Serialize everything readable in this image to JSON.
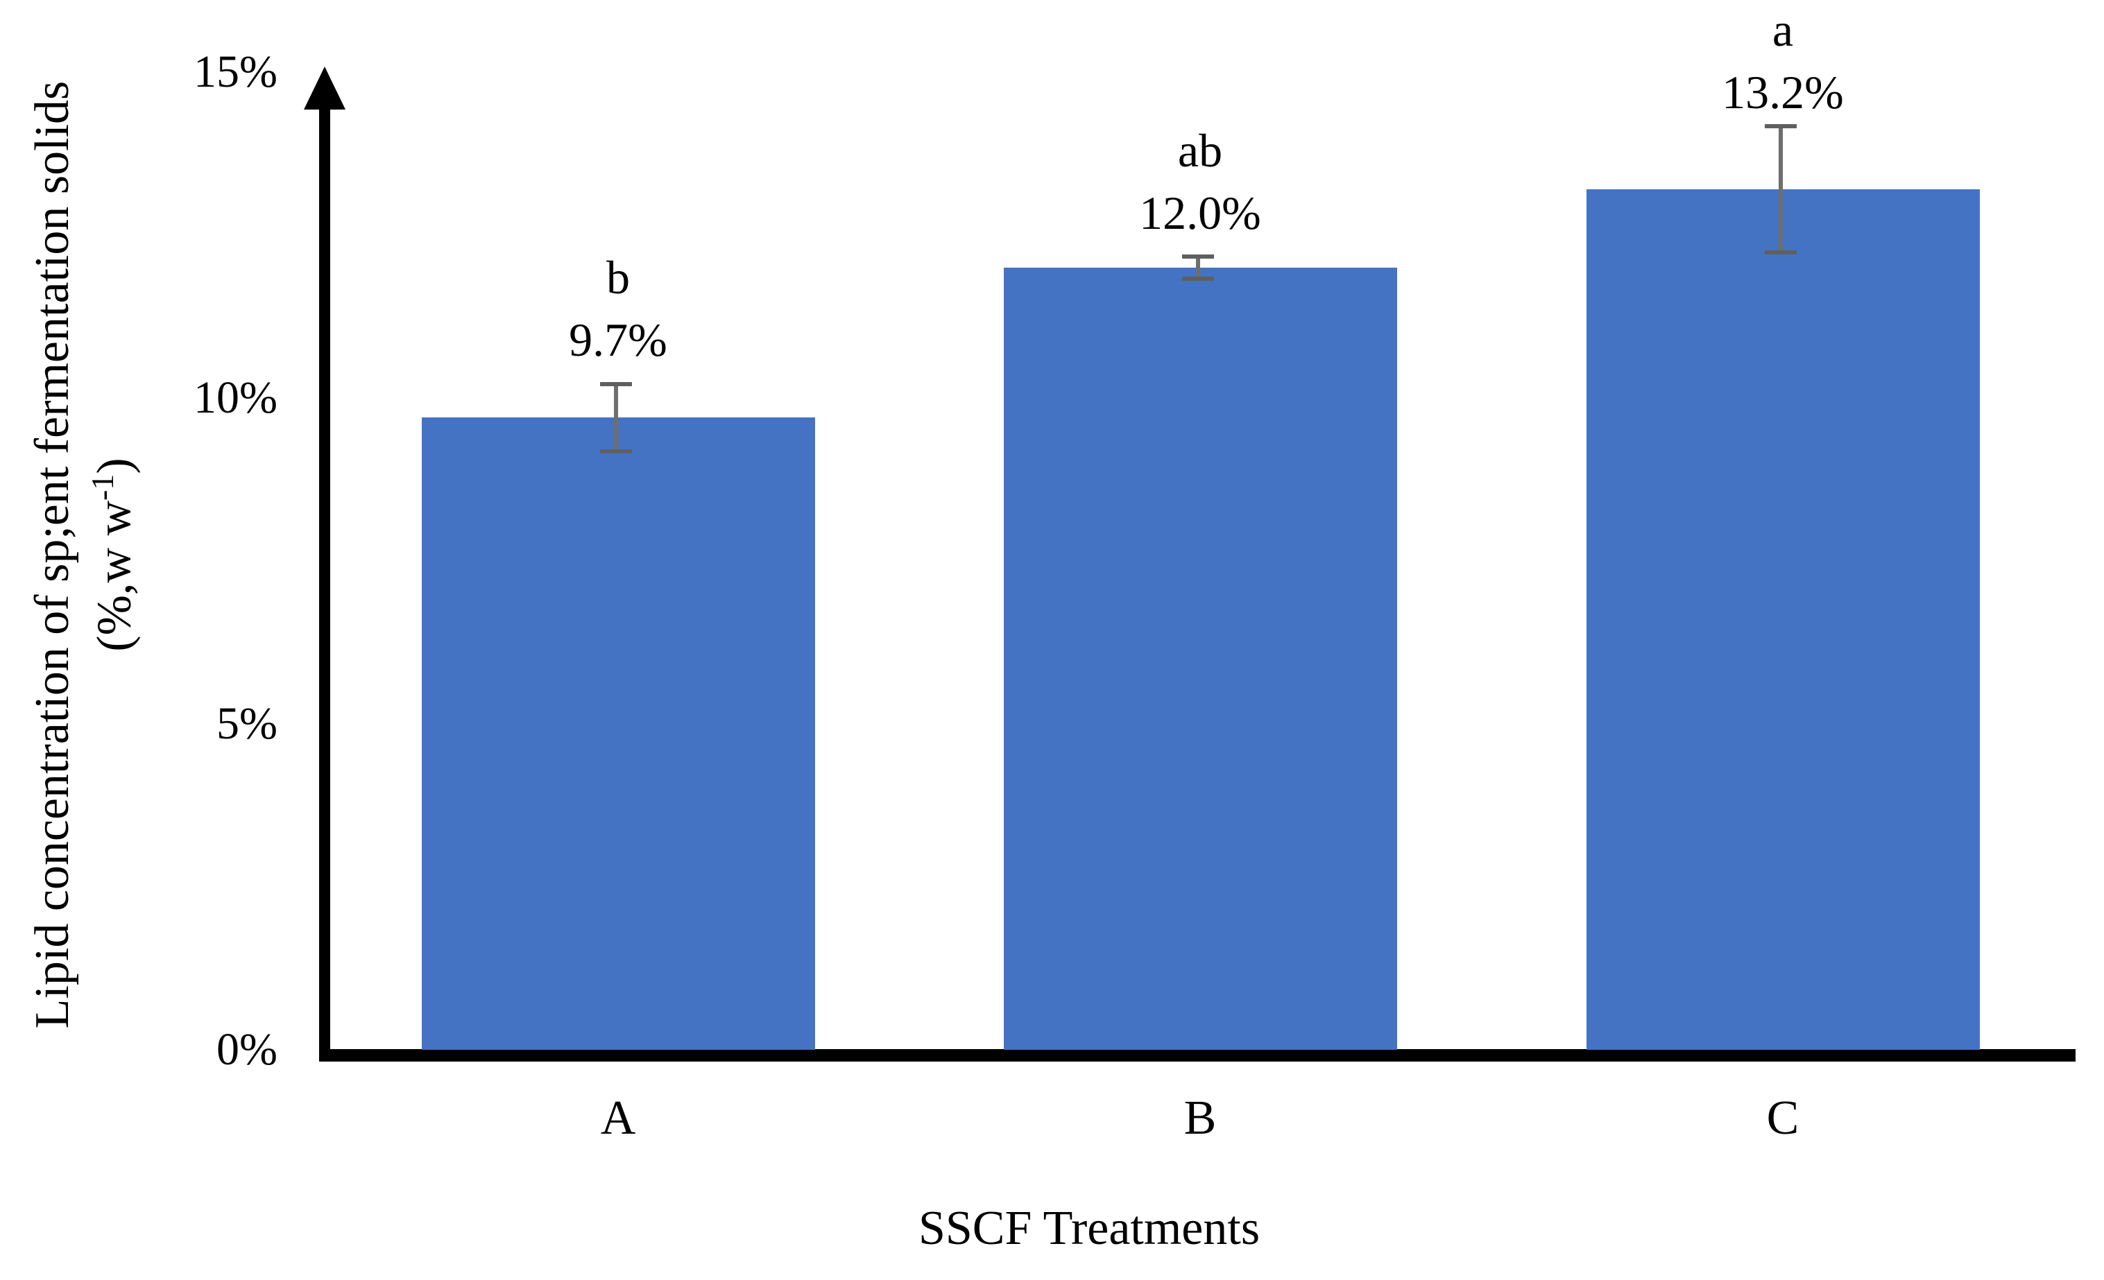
{
  "chart_data": {
    "type": "bar",
    "categories": [
      "A",
      "B",
      "C"
    ],
    "values": [
      9.7,
      12.0,
      13.2
    ],
    "value_labels": [
      "9.7%",
      "12.0%",
      "13.2%"
    ],
    "significance_letters": [
      "b",
      "ab",
      "a"
    ],
    "error_bars": [
      {
        "upper": 10.25,
        "lower": 9.15
      },
      {
        "upper": 12.2,
        "lower": 11.8
      },
      {
        "upper": 14.2,
        "lower": 12.2
      }
    ],
    "xlabel": "SSCF Treatments",
    "ylabel_line1": "Lipid concentration of sp;ent fermentation solids",
    "ylabel_line2_prefix": "(%,w w",
    "ylabel_line2_sup": "-1",
    "ylabel_line2_suffix": ")",
    "y_ticks": [
      "0%",
      "5%",
      "10%",
      "15%"
    ],
    "y_tick_values": [
      0,
      5,
      10,
      15
    ],
    "ylim": [
      0,
      15
    ],
    "grid": "off",
    "legend": "none",
    "bar_color": "#4473C4",
    "error_bar_color": "#6e6e6e",
    "axis_color": "#000000"
  }
}
